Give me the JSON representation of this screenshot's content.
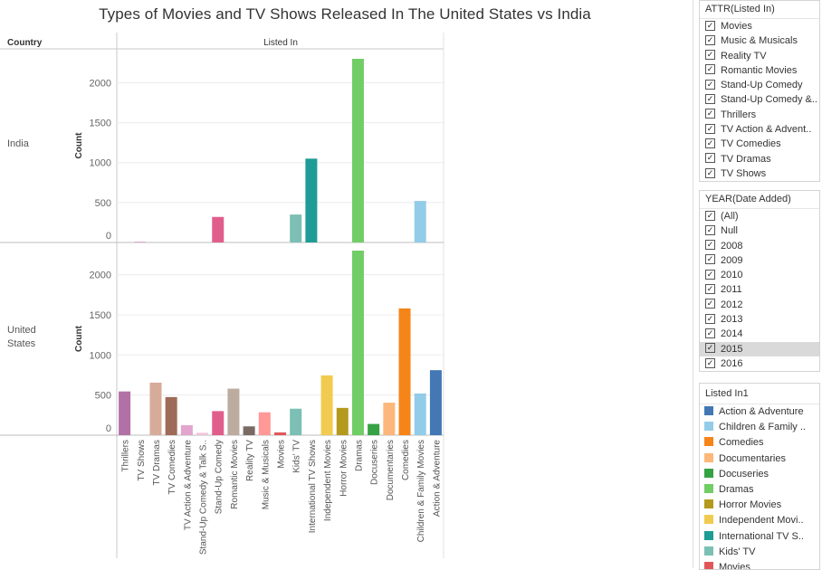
{
  "chart_data": {
    "type": "bar",
    "title": "Types of Movies and TV Shows Released In The United States vs India",
    "column_header": "Listed In",
    "row_header": "Country",
    "ylabel": "Count",
    "ylim": [
      0,
      2400
    ],
    "yticks": [
      0,
      500,
      1000,
      1500,
      2000
    ],
    "categories": [
      "Thrillers",
      "TV Shows",
      "TV Dramas",
      "TV Comedies",
      "TV Action & Adventure",
      "Stand-Up Comedy & Talk S..",
      "Stand-Up Comedy",
      "Romantic Movies",
      "Reality TV",
      "Music & Musicals",
      "Movies",
      "Kids' TV",
      "International TV Shows",
      "Independent Movies",
      "Horror Movies",
      "Dramas",
      "Docuseries",
      "Documentaries",
      "Comedies",
      "Children & Family Movies",
      "Action & Adventure"
    ],
    "colors": [
      "#b271a6",
      "#d9a2c6",
      "#d7ab9a",
      "#9e6b58",
      "#e2a6cd",
      "#f1c6d9",
      "#e05e8c",
      "#bcaca0",
      "#796b64",
      "#ff9896",
      "#e15759",
      "#7cbfb4",
      "#1f9c95",
      "#f1cb4f",
      "#b39a1c",
      "#71cd66",
      "#35a244",
      "#fdb77b",
      "#f58518",
      "#93cce8",
      "#4378b5"
    ],
    "series": [
      {
        "name": "India",
        "values": [
          0,
          10,
          0,
          0,
          0,
          0,
          320,
          0,
          0,
          0,
          0,
          350,
          1050,
          0,
          0,
          2300,
          0,
          0,
          0,
          520,
          0
        ]
      },
      {
        "name": "United States",
        "values": [
          545,
          0,
          655,
          475,
          125,
          30,
          300,
          580,
          110,
          285,
          35,
          330,
          0,
          745,
          340,
          2300,
          140,
          405,
          1580,
          520,
          810
        ]
      }
    ]
  },
  "panels": {
    "attr": {
      "title": "ATTR(Listed In)",
      "items": [
        "Movies",
        "Music & Musicals",
        "Reality TV",
        "Romantic Movies",
        "Stand-Up Comedy",
        "Stand-Up Comedy &..",
        "Thrillers",
        "TV Action & Advent..",
        "TV Comedies",
        "TV Dramas",
        "TV Shows"
      ]
    },
    "year": {
      "title": "YEAR(Date Added)",
      "items": [
        "(All)",
        "Null",
        "2008",
        "2009",
        "2010",
        "2011",
        "2012",
        "2013",
        "2014",
        "2015",
        "2016"
      ],
      "highlighted": "2015"
    },
    "legend": {
      "title": "Listed In1",
      "items": [
        {
          "label": "Action & Adventure",
          "color": "#4378b5"
        },
        {
          "label": "Children & Family ..",
          "color": "#93cce8"
        },
        {
          "label": "Comedies",
          "color": "#f58518"
        },
        {
          "label": "Documentaries",
          "color": "#fdb77b"
        },
        {
          "label": "Docuseries",
          "color": "#35a244"
        },
        {
          "label": "Dramas",
          "color": "#71cd66"
        },
        {
          "label": "Horror Movies",
          "color": "#b39a1c"
        },
        {
          "label": "Independent Movi..",
          "color": "#f1cb4f"
        },
        {
          "label": "International TV S..",
          "color": "#1f9c95"
        },
        {
          "label": "Kids' TV",
          "color": "#7cbfb4"
        },
        {
          "label": "Movies",
          "color": "#e15759"
        }
      ]
    },
    "check_mark": "✓"
  }
}
